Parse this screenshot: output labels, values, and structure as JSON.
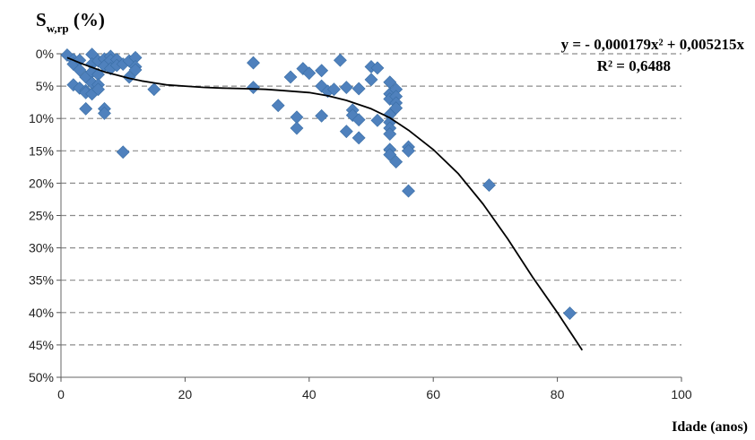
{
  "chart_data": {
    "type": "scatter",
    "ylabel_main": "S",
    "ylabel_sub": "w,rp",
    "ylabel_unit": "(%)",
    "xlabel": "Idade (anos)",
    "xlim": [
      0,
      100
    ],
    "ylim": [
      0,
      50
    ],
    "y_inverted": true,
    "x_ticks": [
      "0",
      "20",
      "40",
      "60",
      "80",
      "100"
    ],
    "y_ticks": [
      "0%",
      "5%",
      "10%",
      "15%",
      "20%",
      "25%",
      "30%",
      "35%",
      "40%",
      "45%",
      "50%"
    ],
    "grid": "horizontal dashed",
    "marker": "diamond",
    "marker_color": "#4f81bd",
    "trendline_color": "#000000",
    "equation": "y = - 0,000179x² + 0,005215x",
    "r_squared": "R² = 0,6488",
    "trendline": {
      "x": [
        1,
        3,
        5,
        7,
        9,
        11,
        13,
        15,
        17,
        20,
        23,
        26,
        30,
        33,
        36,
        40,
        43,
        46,
        50,
        53,
        56,
        60,
        64,
        68,
        72,
        76,
        80,
        84
      ],
      "y": [
        0.6,
        1.4,
        2.1,
        2.8,
        3.3,
        3.8,
        4.2,
        4.5,
        4.8,
        5.0,
        5.2,
        5.3,
        5.4,
        5.5,
        5.7,
        6.0,
        6.5,
        7.2,
        8.5,
        9.9,
        11.8,
        14.8,
        18.5,
        23.2,
        28.6,
        34.5,
        40.0,
        45.8
      ]
    },
    "points": [
      [
        1,
        0.2
      ],
      [
        2,
        0.9
      ],
      [
        2,
        1.6
      ],
      [
        3,
        1.0
      ],
      [
        3,
        2.5
      ],
      [
        2,
        4.8
      ],
      [
        3,
        5.3
      ],
      [
        4,
        5.7
      ],
      [
        4,
        6.0
      ],
      [
        4,
        3.6
      ],
      [
        4,
        8.5
      ],
      [
        5,
        0.1
      ],
      [
        5,
        1.6
      ],
      [
        5,
        2.8
      ],
      [
        5,
        4.5
      ],
      [
        5,
        6.2
      ],
      [
        6,
        1.1
      ],
      [
        6,
        3.2
      ],
      [
        6,
        4.8
      ],
      [
        6,
        5.5
      ],
      [
        7,
        0.8
      ],
      [
        7,
        1.9
      ],
      [
        7,
        8.5
      ],
      [
        7,
        9.2
      ],
      [
        8,
        0.4
      ],
      [
        8,
        1.0
      ],
      [
        8,
        2.3
      ],
      [
        9,
        0.9
      ],
      [
        9,
        1.8
      ],
      [
        10,
        1.6
      ],
      [
        10,
        15.2
      ],
      [
        11,
        1.1
      ],
      [
        11,
        3.6
      ],
      [
        12,
        0.6
      ],
      [
        12,
        2.0
      ],
      [
        12,
        2.5
      ],
      [
        15,
        5.5
      ],
      [
        31,
        1.4
      ],
      [
        31,
        5.2
      ],
      [
        35,
        8.0
      ],
      [
        37,
        3.6
      ],
      [
        38,
        9.8
      ],
      [
        38,
        11.5
      ],
      [
        39,
        2.3
      ],
      [
        40,
        3.0
      ],
      [
        42,
        2.6
      ],
      [
        42,
        5.0
      ],
      [
        42,
        9.6
      ],
      [
        43,
        5.8
      ],
      [
        44,
        5.5
      ],
      [
        45,
        1.0
      ],
      [
        46,
        5.2
      ],
      [
        46,
        12.0
      ],
      [
        47,
        8.7
      ],
      [
        47,
        9.5
      ],
      [
        48,
        5.4
      ],
      [
        48,
        10.2
      ],
      [
        48,
        13.0
      ],
      [
        50,
        2.0
      ],
      [
        50,
        4.0
      ],
      [
        51,
        2.2
      ],
      [
        51,
        10.3
      ],
      [
        53,
        4.4
      ],
      [
        53,
        6.2
      ],
      [
        53,
        7.0
      ],
      [
        53,
        9.4
      ],
      [
        53,
        10.6
      ],
      [
        53,
        11.5
      ],
      [
        53,
        12.4
      ],
      [
        53,
        14.8
      ],
      [
        53,
        15.6
      ],
      [
        54,
        5.5
      ],
      [
        54,
        6.6
      ],
      [
        54,
        7.6
      ],
      [
        54,
        8.4
      ],
      [
        54,
        16.7
      ],
      [
        56,
        14.4
      ],
      [
        56,
        15.0
      ],
      [
        56,
        21.2
      ],
      [
        69,
        20.3
      ],
      [
        82,
        40.1
      ]
    ]
  }
}
